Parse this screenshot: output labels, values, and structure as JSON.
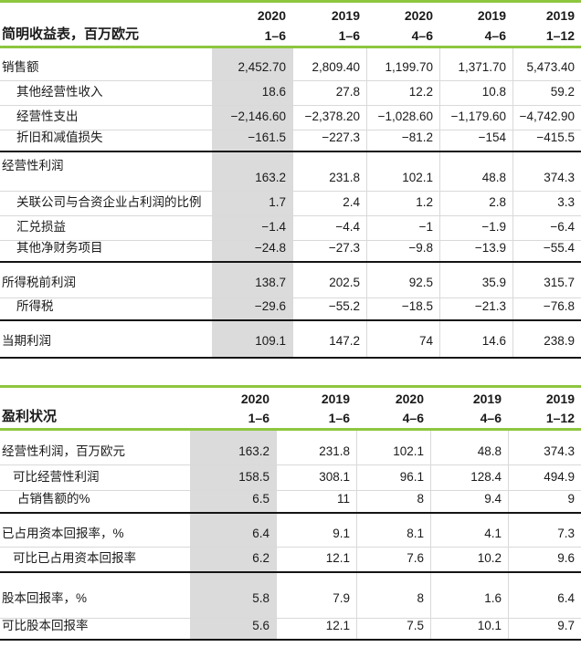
{
  "colors": {
    "accent_green": "#8DC63F",
    "highlight_gray": "#DBDBDB",
    "grid_light": "#D9D9D9",
    "rule_dark": "#141414",
    "text": "#1A1A1A"
  },
  "columns": [
    {
      "year": "2020",
      "period": "1–6"
    },
    {
      "year": "2019",
      "period": "1–6"
    },
    {
      "year": "2020",
      "period": "4–6"
    },
    {
      "year": "2019",
      "period": "4–6"
    },
    {
      "year": "2019",
      "period": "1–12"
    }
  ],
  "tables": [
    {
      "title": "简明收益表，百万欧元",
      "rows": [
        {
          "label": "销售额",
          "indent": 0,
          "values": [
            "2,452.70",
            "2,809.40",
            "1,199.70",
            "1,371.70",
            "5,473.40"
          ],
          "rule": "thin",
          "h": 36
        },
        {
          "label": "其他经营性收入",
          "indent": 1,
          "values": [
            "18.6",
            "27.8",
            "12.2",
            "10.8",
            "59.2"
          ],
          "rule": "thin",
          "h": 27
        },
        {
          "label": "经营性支出",
          "indent": 1,
          "values": [
            "−2,146.60",
            "−2,378.20",
            "−1,028.60",
            "−1,179.60",
            "−4,742.90"
          ],
          "rule": "thin",
          "h": 27
        },
        {
          "label": "折旧和减值损失",
          "indent": 1,
          "values": [
            "−161.5",
            "−227.3",
            "−81.2",
            "−154",
            "−415.5"
          ],
          "rule": "dark",
          "h": 24
        },
        {
          "label": "经营性利润",
          "indent": 0,
          "values": [
            "163.2",
            "231.8",
            "102.1",
            "48.8",
            "374.3"
          ],
          "rule": "thin",
          "h": 43,
          "split": true
        },
        {
          "label": "关联公司与合资企业占利润的比例",
          "indent": 1,
          "values": [
            "1.7",
            "2.4",
            "1.2",
            "2.8",
            "3.3"
          ],
          "rule": "thin",
          "h": 27
        },
        {
          "label": "汇兑损益",
          "indent": 1,
          "values": [
            "−1.4",
            "−4.4",
            "−1",
            "−1.9",
            "−6.4"
          ],
          "rule": "thin",
          "h": 27
        },
        {
          "label": "其他净财务项目",
          "indent": 1,
          "values": [
            "−24.8",
            "−27.3",
            "−9.8",
            "−13.9",
            "−55.4"
          ],
          "rule": "dark",
          "h": 24
        },
        {
          "label": "所得税前利润",
          "indent": 0,
          "values": [
            "138.7",
            "202.5",
            "92.5",
            "35.9",
            "315.7"
          ],
          "rule": "thin",
          "h": 39,
          "padB": 8
        },
        {
          "label": "所得税",
          "indent": 1,
          "values": [
            "−29.6",
            "−55.2",
            "−18.5",
            "−21.3",
            "−76.8"
          ],
          "rule": "dark",
          "h": 25
        },
        {
          "label": "当期利润",
          "indent": 0,
          "values": [
            "109.1",
            "147.2",
            "74",
            "14.6",
            "238.9"
          ],
          "rule": "dark",
          "h": 41,
          "padB": 9
        }
      ]
    },
    {
      "title": "盈利状况",
      "rows": [
        {
          "label": "经营性利润，百万欧元",
          "indent": 0,
          "values": [
            "163.2",
            "231.8",
            "102.1",
            "48.8",
            "374.3"
          ],
          "rule": "thin",
          "h": 38
        },
        {
          "label": "可比经营性利润",
          "indent": 1,
          "values": [
            "158.5",
            "308.1",
            "96.1",
            "128.4",
            "494.9"
          ],
          "rule": "thin",
          "h": 28
        },
        {
          "label": "占销售额的%",
          "indent": 2,
          "values": [
            "6.5",
            "11",
            "8",
            "9.4",
            "9"
          ],
          "rule": "dark",
          "h": 25
        },
        {
          "label": "已占用资本回报率，%",
          "indent": 0,
          "values": [
            "6.4",
            "9.1",
            "8.1",
            "4.1",
            "7.3"
          ],
          "rule": "thin",
          "h": 37
        },
        {
          "label": "可比已占用资本回报率",
          "indent": 1,
          "values": [
            "6.2",
            "12.1",
            "7.6",
            "10.2",
            "9.6"
          ],
          "rule": "dark",
          "h": 28
        },
        {
          "label": "股本回报率，%",
          "indent": 0,
          "values": [
            "5.8",
            "7.9",
            "8",
            "1.6",
            "6.4"
          ],
          "rule": "thin",
          "h": 50,
          "padB": 13
        },
        {
          "label": "可比股本回报率",
          "indent": 0,
          "values": [
            "5.6",
            "12.1",
            "7.5",
            "10.1",
            "9.7"
          ],
          "rule": "dark",
          "h": 24
        }
      ]
    }
  ]
}
